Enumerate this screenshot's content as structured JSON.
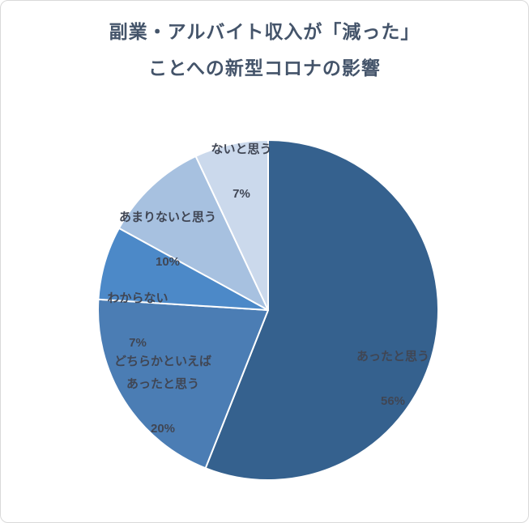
{
  "chart": {
    "title": "副業・アルバイト収入が「減った」\nことへの新型コロナの影響"
  },
  "chart_data": {
    "type": "pie",
    "title": "副業・アルバイト収入が「減った」ことへの新型コロナの影響",
    "start_angle_deg": 0,
    "direction": "clockwise",
    "legend": "none",
    "categories": [
      "あったと思う",
      "どちらかといえばあったと思う",
      "わからない",
      "あまりないと思う",
      "ないと思う"
    ],
    "values": [
      56,
      20,
      7,
      10,
      7
    ],
    "colors": [
      "#35618E",
      "#4B7DB4",
      "#4C89C8",
      "#A7C1E0",
      "#CBD9EC"
    ],
    "slice_border_color": "#ffffff",
    "labels": [
      {
        "name": "あったと思う",
        "pct": "56%"
      },
      {
        "name": "どちらかといえば\nあったと思う",
        "pct": "20%"
      },
      {
        "name": "わからない",
        "pct": "7%"
      },
      {
        "name": "あまりないと思う",
        "pct": "10%"
      },
      {
        "name": "ないと思う",
        "pct": "7%"
      }
    ]
  }
}
